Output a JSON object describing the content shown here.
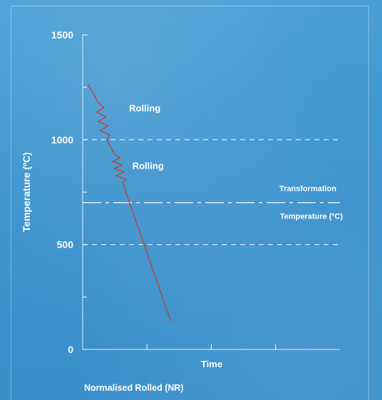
{
  "chart_data": {
    "type": "line",
    "title": "",
    "caption": "Normalised Rolled (NR)",
    "xlabel": "Time",
    "ylabel": "Temperature (ºC)",
    "ylim": [
      0,
      1500
    ],
    "yticks": [
      0,
      500,
      1000,
      1500
    ],
    "ytick_labels": [
      "0",
      "500",
      "1000",
      "1500"
    ],
    "yminor_ticks": [
      250,
      750,
      1250
    ],
    "xlim": [
      0,
      4
    ],
    "xticks": [
      1,
      2,
      3
    ],
    "grid": false,
    "reference_lines": [
      {
        "y": 1000,
        "style": "dashed",
        "label": ""
      },
      {
        "y": 500,
        "style": "dashed",
        "label": ""
      },
      {
        "y": 700,
        "style": "dash-dot",
        "label_lines": [
          "Transformation",
          "Temperature (ºC)"
        ]
      }
    ],
    "annotations": [
      {
        "text": "Rolling",
        "x": 0.7,
        "y": 1135
      },
      {
        "text": "Rolling",
        "x": 0.75,
        "y": 860
      }
    ],
    "series": [
      {
        "color": "#b5473a",
        "segments": [
          {
            "kind": "straight",
            "x": [
              0.08,
              0.25
            ],
            "y": [
              1265,
              1175
            ]
          },
          {
            "kind": "zigzag",
            "x": [
              0.25,
              0.37
            ],
            "y": [
              1175,
              1000
            ]
          },
          {
            "kind": "straight",
            "x": [
              0.37,
              0.5
            ],
            "y": [
              1000,
              930
            ]
          },
          {
            "kind": "zigzag",
            "x": [
              0.5,
              0.62
            ],
            "y": [
              930,
              795
            ]
          },
          {
            "kind": "straight",
            "x": [
              0.62,
              1.37
            ],
            "y": [
              795,
              135
            ]
          }
        ]
      }
    ]
  }
}
